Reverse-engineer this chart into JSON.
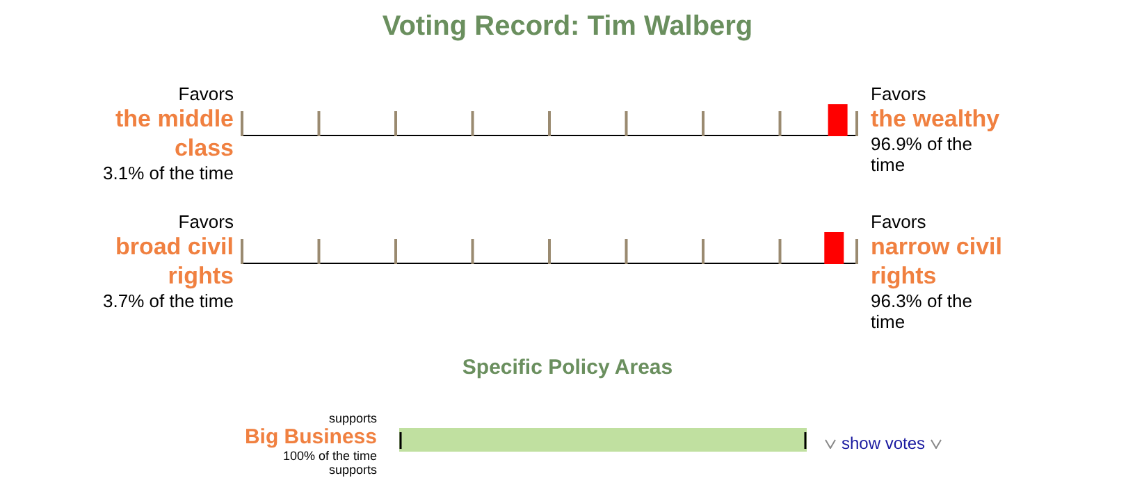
{
  "chart_data": [
    {
      "type": "other",
      "title": "Voting Record: Tim Walberg",
      "categories": [
        "the middle class",
        "broad civil rights"
      ],
      "y2_categories": [
        "the wealthy",
        "narrow civil rights"
      ],
      "values": [
        96.9,
        96.3
      ],
      "value_labels": [
        "96.9% of the time",
        "96.3% of the time"
      ],
      "annotations": [
        "Favors",
        "Favors",
        "3.1% of the time",
        "Favors",
        "Favors",
        "3.7% of the time"
      ],
      "color": "#ff0000"
    },
    {
      "type": "bar",
      "orientation": "horizontal",
      "title": "Specific Policy Areas",
      "categories": [
        "Big Business"
      ],
      "values": [
        100
      ],
      "value_labels": [
        "100% of the time"
      ],
      "color": "#c0e0a0",
      "annotations": [
        "supports",
        "show votes",
        "supports"
      ]
    }
  ]
}
